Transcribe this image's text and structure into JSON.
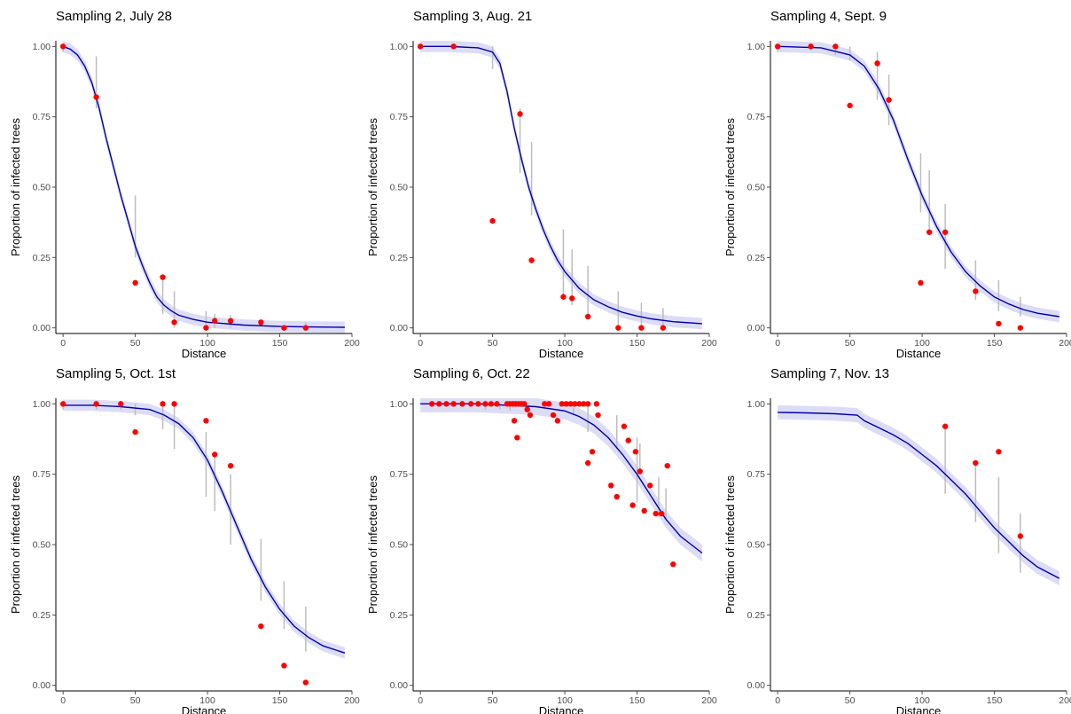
{
  "figure": {
    "colors": {
      "fit_line": "#0000aa",
      "confidence_band": "#dcdcf7",
      "points": "#ff0000",
      "error_bars": "#bdbdbd",
      "axis": "#000000",
      "tick_text": "#4d4d4d"
    }
  },
  "chart_data": [
    {
      "type": "scatter",
      "title": "Sampling 2, July 28",
      "xlabel": "Distance",
      "ylabel": "Proportion of infected trees",
      "xlim": [
        -5,
        200
      ],
      "ylim": [
        -0.02,
        1.02
      ],
      "x_ticks": [
        0,
        50,
        100,
        150,
        200
      ],
      "x_tick_labels": [
        "0",
        "50",
        "100",
        "150",
        "200"
      ],
      "y_ticks": [
        0,
        0.25,
        0.5,
        0.75,
        1
      ],
      "y_tick_labels": [
        "0.00",
        "0.25",
        "0.50",
        "0.75",
        "1.00"
      ],
      "grid": false,
      "legend": "none",
      "points": [
        [
          0,
          1.0
        ],
        [
          23,
          0.82
        ],
        [
          50,
          0.16
        ],
        [
          69,
          0.18
        ],
        [
          77,
          0.02
        ],
        [
          99,
          0.0
        ],
        [
          105,
          0.025
        ],
        [
          116,
          0.025
        ],
        [
          137,
          0.02
        ],
        [
          153,
          0.0
        ],
        [
          168,
          0.0
        ]
      ],
      "error_bars": [
        [
          0,
          0.98,
          1.0
        ],
        [
          23,
          0.78,
          0.965
        ],
        [
          50,
          0.25,
          0.47
        ],
        [
          69,
          0.05,
          0.17
        ],
        [
          77,
          0.0,
          0.13
        ],
        [
          99,
          0.0,
          0.06
        ],
        [
          105,
          0.0,
          0.05
        ],
        [
          116,
          0.0,
          0.045
        ],
        [
          168,
          0.0,
          0.02
        ]
      ],
      "fit": [
        [
          0,
          1.0
        ],
        [
          5,
          0.99
        ],
        [
          10,
          0.97
        ],
        [
          15,
          0.93
        ],
        [
          20,
          0.87
        ],
        [
          25,
          0.78
        ],
        [
          30,
          0.67
        ],
        [
          35,
          0.57
        ],
        [
          40,
          0.47
        ],
        [
          45,
          0.38
        ],
        [
          50,
          0.29
        ],
        [
          55,
          0.22
        ],
        [
          60,
          0.16
        ],
        [
          65,
          0.11
        ],
        [
          70,
          0.08
        ],
        [
          75,
          0.06
        ],
        [
          80,
          0.045
        ],
        [
          90,
          0.03
        ],
        [
          100,
          0.02
        ],
        [
          125,
          0.01
        ],
        [
          150,
          0.005
        ],
        [
          175,
          0.003
        ],
        [
          195,
          0.002
        ]
      ],
      "band_width": 0.02
    },
    {
      "type": "scatter",
      "title": "Sampling 3, Aug. 21",
      "xlabel": "Distance",
      "ylabel": "Proportion of infected trees",
      "xlim": [
        -5,
        200
      ],
      "ylim": [
        -0.02,
        1.02
      ],
      "x_ticks": [
        0,
        50,
        100,
        150,
        200
      ],
      "x_tick_labels": [
        "0",
        "50",
        "100",
        "150",
        "200"
      ],
      "y_ticks": [
        0,
        0.25,
        0.5,
        0.75,
        1
      ],
      "y_tick_labels": [
        "0.00",
        "0.25",
        "0.50",
        "0.75",
        "1.00"
      ],
      "grid": false,
      "legend": "none",
      "points": [
        [
          0,
          1.0
        ],
        [
          23,
          1.0
        ],
        [
          50,
          0.38
        ],
        [
          69,
          0.76
        ],
        [
          77,
          0.24
        ],
        [
          99,
          0.11
        ],
        [
          105,
          0.105
        ],
        [
          116,
          0.04
        ],
        [
          137,
          0.0
        ],
        [
          153,
          0.0
        ],
        [
          168,
          0.0
        ]
      ],
      "error_bars": [
        [
          50,
          0.92,
          1.0
        ],
        [
          69,
          0.55,
          0.78
        ],
        [
          77,
          0.4,
          0.66
        ],
        [
          99,
          0.12,
          0.35
        ],
        [
          105,
          0.08,
          0.28
        ],
        [
          116,
          0.05,
          0.22
        ],
        [
          137,
          0.0,
          0.13
        ],
        [
          153,
          0.0,
          0.09
        ],
        [
          168,
          0.0,
          0.07
        ]
      ],
      "fit": [
        [
          0,
          1.0
        ],
        [
          20,
          1.0
        ],
        [
          40,
          0.995
        ],
        [
          50,
          0.98
        ],
        [
          55,
          0.94
        ],
        [
          60,
          0.84
        ],
        [
          65,
          0.71
        ],
        [
          70,
          0.6
        ],
        [
          75,
          0.5
        ],
        [
          80,
          0.42
        ],
        [
          85,
          0.35
        ],
        [
          90,
          0.29
        ],
        [
          95,
          0.24
        ],
        [
          100,
          0.2
        ],
        [
          110,
          0.14
        ],
        [
          120,
          0.1
        ],
        [
          130,
          0.075
        ],
        [
          140,
          0.055
        ],
        [
          150,
          0.042
        ],
        [
          160,
          0.032
        ],
        [
          175,
          0.022
        ],
        [
          195,
          0.015
        ]
      ],
      "band_width": 0.02
    },
    {
      "type": "scatter",
      "title": "Sampling 4, Sept. 9",
      "xlabel": "Distance",
      "ylabel": "Proportion of infected trees",
      "xlim": [
        -5,
        200
      ],
      "ylim": [
        -0.02,
        1.02
      ],
      "x_ticks": [
        0,
        50,
        100,
        150,
        200
      ],
      "x_tick_labels": [
        "0",
        "50",
        "100",
        "150",
        "200"
      ],
      "y_ticks": [
        0,
        0.25,
        0.5,
        0.75,
        1
      ],
      "y_tick_labels": [
        "0.00",
        "0.25",
        "0.50",
        "0.75",
        "1.00"
      ],
      "grid": false,
      "legend": "none",
      "points": [
        [
          0,
          1.0
        ],
        [
          23,
          1.0
        ],
        [
          40,
          1.0
        ],
        [
          50,
          0.79
        ],
        [
          69,
          0.94
        ],
        [
          77,
          0.81
        ],
        [
          99,
          0.16
        ],
        [
          105,
          0.34
        ],
        [
          116,
          0.34
        ],
        [
          137,
          0.13
        ],
        [
          153,
          0.015
        ],
        [
          168,
          0.0
        ]
      ],
      "error_bars": [
        [
          0,
          0.98,
          1.0
        ],
        [
          23,
          0.985,
          1.0
        ],
        [
          40,
          0.97,
          1.0
        ],
        [
          50,
          0.95,
          1.0
        ],
        [
          69,
          0.81,
          0.98
        ],
        [
          77,
          0.72,
          0.9
        ],
        [
          99,
          0.41,
          0.62
        ],
        [
          105,
          0.33,
          0.56
        ],
        [
          116,
          0.21,
          0.44
        ],
        [
          137,
          0.1,
          0.24
        ],
        [
          153,
          0.06,
          0.17
        ],
        [
          168,
          0.04,
          0.11
        ]
      ],
      "fit": [
        [
          0,
          1.0
        ],
        [
          30,
          0.995
        ],
        [
          50,
          0.97
        ],
        [
          60,
          0.93
        ],
        [
          70,
          0.85
        ],
        [
          80,
          0.74
        ],
        [
          90,
          0.6
        ],
        [
          100,
          0.47
        ],
        [
          110,
          0.36
        ],
        [
          120,
          0.27
        ],
        [
          130,
          0.2
        ],
        [
          140,
          0.15
        ],
        [
          150,
          0.11
        ],
        [
          160,
          0.085
        ],
        [
          170,
          0.065
        ],
        [
          180,
          0.052
        ],
        [
          195,
          0.04
        ]
      ],
      "band_width": 0.02
    },
    {
      "type": "scatter",
      "title": "Sampling 5, Oct. 1st",
      "xlabel": "Distance",
      "ylabel": "Proportion of infected trees",
      "xlim": [
        -5,
        200
      ],
      "ylim": [
        -0.02,
        1.02
      ],
      "x_ticks": [
        0,
        50,
        100,
        150,
        200
      ],
      "x_tick_labels": [
        "0",
        "50",
        "100",
        "150",
        "200"
      ],
      "y_ticks": [
        0,
        0.25,
        0.5,
        0.75,
        1
      ],
      "y_tick_labels": [
        "0.00",
        "0.25",
        "0.50",
        "0.75",
        "1.00"
      ],
      "grid": false,
      "legend": "none",
      "points": [
        [
          0,
          1.0
        ],
        [
          23,
          1.0
        ],
        [
          40,
          1.0
        ],
        [
          50,
          0.9
        ],
        [
          69,
          1.0
        ],
        [
          77,
          1.0
        ],
        [
          99,
          0.94
        ],
        [
          105,
          0.82
        ],
        [
          116,
          0.78
        ],
        [
          137,
          0.21
        ],
        [
          153,
          0.07
        ],
        [
          168,
          0.01
        ]
      ],
      "error_bars": [
        [
          0,
          0.98,
          1.0
        ],
        [
          23,
          0.98,
          1.0
        ],
        [
          40,
          0.98,
          1.0
        ],
        [
          50,
          0.96,
          1.0
        ],
        [
          69,
          0.91,
          1.0
        ],
        [
          77,
          0.84,
          1.0
        ],
        [
          99,
          0.67,
          0.9
        ],
        [
          105,
          0.62,
          0.83
        ],
        [
          116,
          0.5,
          0.75
        ],
        [
          137,
          0.3,
          0.52
        ],
        [
          153,
          0.2,
          0.37
        ],
        [
          168,
          0.12,
          0.28
        ]
      ],
      "fit": [
        [
          0,
          0.995
        ],
        [
          20,
          0.995
        ],
        [
          40,
          0.99
        ],
        [
          60,
          0.98
        ],
        [
          70,
          0.96
        ],
        [
          80,
          0.93
        ],
        [
          90,
          0.88
        ],
        [
          100,
          0.8
        ],
        [
          110,
          0.69
        ],
        [
          120,
          0.57
        ],
        [
          130,
          0.45
        ],
        [
          140,
          0.35
        ],
        [
          150,
          0.27
        ],
        [
          160,
          0.21
        ],
        [
          170,
          0.17
        ],
        [
          180,
          0.14
        ],
        [
          195,
          0.115
        ]
      ],
      "band_width": 0.02
    },
    {
      "type": "scatter",
      "title": "Sampling 6, Oct. 22",
      "xlabel": "Distance",
      "ylabel": "Proportion of infected trees",
      "xlim": [
        -5,
        200
      ],
      "ylim": [
        -0.02,
        1.02
      ],
      "x_ticks": [
        0,
        50,
        100,
        150,
        200
      ],
      "x_tick_labels": [
        "0",
        "50",
        "100",
        "150",
        "200"
      ],
      "y_ticks": [
        0,
        0.25,
        0.5,
        0.75,
        1
      ],
      "y_tick_labels": [
        "0.00",
        "0.25",
        "0.50",
        "0.75",
        "1.00"
      ],
      "grid": false,
      "legend": "none",
      "points": [
        [
          8,
          1.0
        ],
        [
          13,
          1.0
        ],
        [
          18,
          1.0
        ],
        [
          23,
          1.0
        ],
        [
          29,
          1.0
        ],
        [
          35,
          1.0
        ],
        [
          40,
          1.0
        ],
        [
          45,
          1.0
        ],
        [
          49,
          1.0
        ],
        [
          53,
          1.0
        ],
        [
          60,
          1.0
        ],
        [
          62,
          1.0
        ],
        [
          64,
          1.0
        ],
        [
          66,
          1.0
        ],
        [
          68,
          1.0
        ],
        [
          70,
          1.0
        ],
        [
          72,
          1.0
        ],
        [
          74,
          0.98
        ],
        [
          76,
          0.96
        ],
        [
          65,
          0.94
        ],
        [
          67,
          0.88
        ],
        [
          86,
          1.0
        ],
        [
          89,
          1.0
        ],
        [
          92,
          0.96
        ],
        [
          95,
          0.94
        ],
        [
          98,
          1.0
        ],
        [
          101,
          1.0
        ],
        [
          104,
          1.0
        ],
        [
          107,
          1.0
        ],
        [
          110,
          1.0
        ],
        [
          113,
          1.0
        ],
        [
          116,
          1.0
        ],
        [
          122,
          1.0
        ],
        [
          123,
          0.96
        ],
        [
          116,
          0.79
        ],
        [
          119,
          0.83
        ],
        [
          132,
          0.71
        ],
        [
          136,
          0.67
        ],
        [
          141,
          0.92
        ],
        [
          144,
          0.87
        ],
        [
          147,
          0.64
        ],
        [
          149,
          0.83
        ],
        [
          152,
          0.76
        ],
        [
          155,
          0.62
        ],
        [
          159,
          0.71
        ],
        [
          163,
          0.61
        ],
        [
          167,
          0.61
        ],
        [
          171,
          0.78
        ],
        [
          175,
          0.43
        ]
      ],
      "error_bars": [
        [
          45,
          0.98,
          1.0
        ],
        [
          55,
          0.98,
          1.0
        ],
        [
          62,
          0.975,
          1.0
        ],
        [
          75,
          0.96,
          1.0
        ],
        [
          106,
          0.96,
          1.0
        ],
        [
          116,
          0.9,
          1.0
        ],
        [
          136,
          0.84,
          0.96
        ],
        [
          152,
          0.75,
          0.86
        ],
        [
          150,
          0.65,
          0.88
        ],
        [
          165,
          0.6,
          0.74
        ],
        [
          170,
          0.59,
          0.7
        ]
      ],
      "fit": [
        [
          0,
          1.0
        ],
        [
          40,
          1.0
        ],
        [
          60,
          0.995
        ],
        [
          80,
          0.99
        ],
        [
          100,
          0.975
        ],
        [
          110,
          0.955
        ],
        [
          120,
          0.925
        ],
        [
          130,
          0.88
        ],
        [
          140,
          0.82
        ],
        [
          150,
          0.75
        ],
        [
          160,
          0.67
        ],
        [
          170,
          0.59
        ],
        [
          180,
          0.53
        ],
        [
          195,
          0.47
        ]
      ],
      "band_width": 0.03
    },
    {
      "type": "scatter",
      "title": "Sampling 7, Nov. 13",
      "xlabel": "Distance",
      "ylabel": "Proportion of infected trees",
      "xlim": [
        -5,
        200
      ],
      "ylim": [
        -0.02,
        1.02
      ],
      "x_ticks": [
        0,
        50,
        100,
        150,
        200
      ],
      "x_tick_labels": [
        "0",
        "50",
        "100",
        "150",
        "200"
      ],
      "y_ticks": [
        0,
        0.25,
        0.5,
        0.75,
        1
      ],
      "y_tick_labels": [
        "0.00",
        "0.25",
        "0.50",
        "0.75",
        "1.00"
      ],
      "grid": false,
      "legend": "none",
      "points": [
        [
          116,
          0.92
        ],
        [
          137,
          0.79
        ],
        [
          153,
          0.83
        ],
        [
          168,
          0.53
        ]
      ],
      "error_bars": [
        [
          116,
          0.68,
          0.91
        ],
        [
          137,
          0.58,
          0.8
        ],
        [
          153,
          0.47,
          0.74
        ],
        [
          168,
          0.4,
          0.61
        ]
      ],
      "fit": [
        [
          0,
          0.97
        ],
        [
          20,
          0.968
        ],
        [
          40,
          0.965
        ],
        [
          55,
          0.96
        ],
        [
          60,
          0.94
        ],
        [
          70,
          0.915
        ],
        [
          80,
          0.89
        ],
        [
          90,
          0.86
        ],
        [
          100,
          0.82
        ],
        [
          110,
          0.78
        ],
        [
          120,
          0.73
        ],
        [
          130,
          0.68
        ],
        [
          140,
          0.62
        ],
        [
          150,
          0.56
        ],
        [
          160,
          0.51
        ],
        [
          170,
          0.46
        ],
        [
          180,
          0.42
        ],
        [
          195,
          0.38
        ]
      ],
      "band_width": 0.025
    }
  ]
}
